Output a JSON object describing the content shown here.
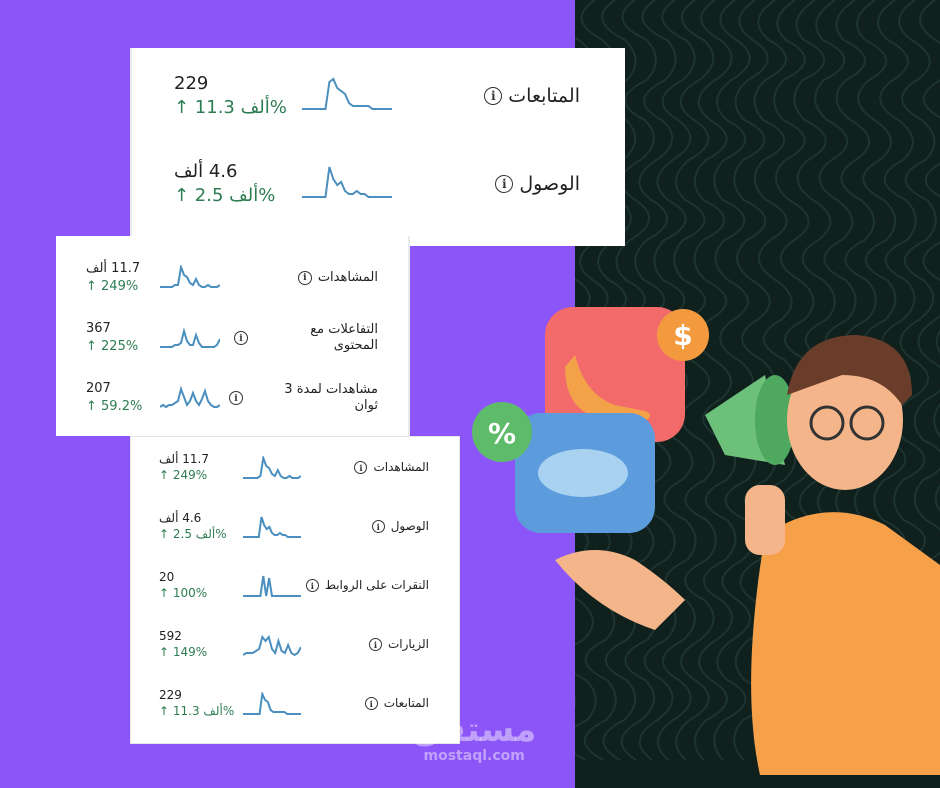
{
  "colors": {
    "left_bg": "#8b55f8",
    "right_bg": "#0f201d",
    "spark": "#4a8fbf",
    "positive": "#2e7d52"
  },
  "card1": {
    "rows": [
      {
        "label": "المتابعات",
        "value": "229",
        "change": "↑ 11.3 ألف%",
        "spark": [
          0,
          0,
          0,
          0,
          0,
          0,
          0,
          9,
          10,
          7,
          6,
          5,
          2,
          1,
          1,
          1,
          1,
          1,
          0,
          0,
          0,
          0,
          0,
          0
        ]
      },
      {
        "label": "الوصول",
        "value": "4.6 ألف",
        "change": "↑ 2.5 ألف%",
        "spark": [
          0,
          0,
          0,
          0,
          0,
          0,
          0,
          10,
          6,
          4,
          5,
          2,
          1,
          1,
          2,
          1,
          1,
          0,
          0,
          0,
          0,
          0,
          0,
          0
        ]
      }
    ]
  },
  "card2": {
    "rows": [
      {
        "label": "المشاهدات",
        "value": "11.7 ألف",
        "change": "↑ 249%",
        "spark": [
          0,
          0,
          0,
          0,
          0,
          1,
          1,
          10,
          6,
          5,
          2,
          1,
          4,
          1,
          0,
          0,
          1,
          0,
          0,
          0,
          1
        ]
      },
      {
        "label": "التفاعلات مع المحتوى",
        "value": "367",
        "change": "↑ 225%",
        "spark": [
          0,
          0,
          0,
          0,
          0,
          1,
          1,
          2,
          8,
          3,
          1,
          1,
          6,
          2,
          0,
          0,
          0,
          0,
          0,
          1,
          4
        ]
      },
      {
        "label": "مشاهدات لمدة 3 ثوان",
        "value": "207",
        "change": "↑ 59.2%",
        "spark": [
          0,
          1,
          0,
          1,
          1,
          2,
          3,
          9,
          5,
          1,
          3,
          7,
          3,
          1,
          4,
          8,
          3,
          1,
          0,
          0,
          1
        ]
      }
    ]
  },
  "card3": {
    "rows": [
      {
        "label": "المشاهدات",
        "value": "11.7 ألف",
        "change": "↑ 249%",
        "spark": [
          0,
          0,
          0,
          0,
          0,
          0,
          1,
          10,
          6,
          5,
          2,
          1,
          4,
          1,
          0,
          0,
          1,
          0,
          0,
          0,
          1
        ]
      },
      {
        "label": "الوصول",
        "value": "4.6 ألف",
        "change": "↑ 2.5 ألف%",
        "spark": [
          0,
          0,
          0,
          0,
          0,
          0,
          0,
          10,
          6,
          4,
          5,
          2,
          1,
          1,
          2,
          1,
          1,
          0,
          0,
          0,
          0,
          0,
          0
        ]
      },
      {
        "label": "النقرات على الروابط",
        "value": "20",
        "change": "↑ 100%",
        "spark": [
          0,
          0,
          0,
          0,
          0,
          0,
          0,
          10,
          0,
          9,
          0,
          0,
          0,
          0,
          0,
          0,
          0,
          0,
          0,
          0,
          0
        ]
      },
      {
        "label": "الزيارات",
        "value": "592",
        "change": "↑ 149%",
        "spark": [
          0,
          1,
          1,
          1,
          2,
          3,
          9,
          7,
          9,
          3,
          1,
          7,
          2,
          1,
          5,
          1,
          0,
          1,
          4
        ]
      },
      {
        "label": "المتابعات",
        "value": "229",
        "change": "↑ 11.3 ألف%",
        "spark": [
          0,
          0,
          0,
          0,
          0,
          0,
          0,
          10,
          7,
          6,
          2,
          1,
          1,
          1,
          1,
          1,
          0,
          0,
          0,
          0,
          0,
          0
        ]
      }
    ]
  },
  "watermark": {
    "arabic": "مستقل",
    "latin": "mostaql.com"
  },
  "illustration": {
    "badges": [
      "$",
      "%"
    ]
  }
}
